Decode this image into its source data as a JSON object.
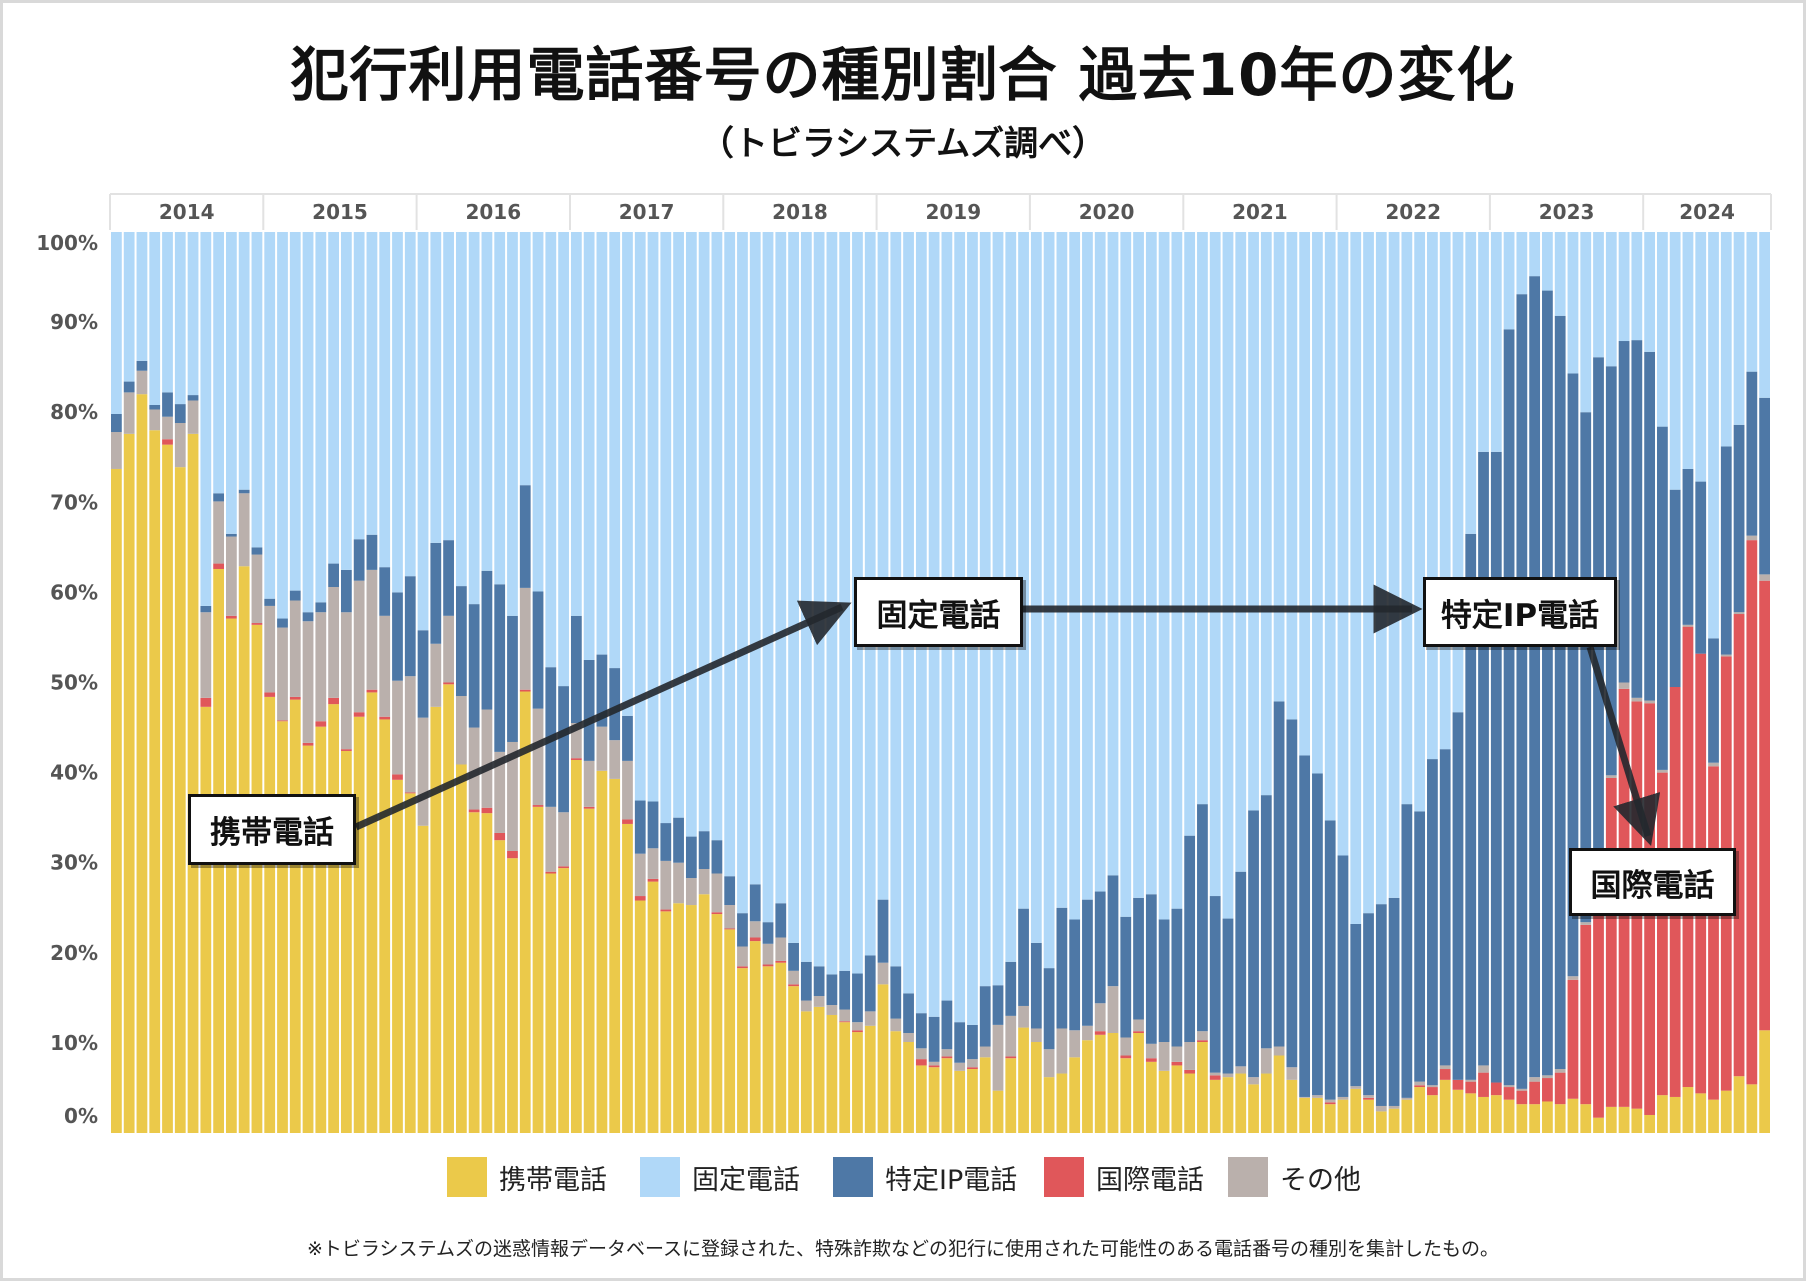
{
  "title": "犯行利用電話番号の種別割合  過去10年の変化",
  "subtitle": "（トビラシステムズ調べ）",
  "footnote": "※トビラシステムズの迷惑情報データベースに登録された、特殊詐欺などの犯行に使用された可能性のある電話番号の種別を集計したもの。",
  "annotations": {
    "mobile": "携帯電話",
    "fixed": "固定電話",
    "ip": "特定IP電話",
    "international": "国際電話"
  },
  "legend": [
    {
      "label": "携帯電話",
      "color": "#ebc94a"
    },
    {
      "label": "固定電話",
      "color": "#b0d8f8"
    },
    {
      "label": "特定IP電話",
      "color": "#4e78a6"
    },
    {
      "label": "国際電話",
      "color": "#e0575a"
    },
    {
      "label": "その他",
      "color": "#bab0ac"
    }
  ],
  "chart_data": {
    "type": "bar",
    "stacked": true,
    "normalized": true,
    "title": "犯行利用電話番号の種別割合  過去10年の変化",
    "xlabel": "",
    "ylabel": "",
    "ylim": [
      0,
      100
    ],
    "yticks": [
      "0%",
      "10%",
      "20%",
      "30%",
      "40%",
      "50%",
      "60%",
      "70%",
      "80%",
      "90%",
      "100%"
    ],
    "year_labels": [
      "2014",
      "2015",
      "2016",
      "2017",
      "2018",
      "2019",
      "2020",
      "2021",
      "2022",
      "2023",
      "2024"
    ],
    "legend_position": "bottom",
    "grid": false,
    "categories": [
      "2014-01",
      "2014-02",
      "2014-03",
      "2014-04",
      "2014-05",
      "2014-06",
      "2014-07",
      "2014-08",
      "2014-09",
      "2014-10",
      "2014-11",
      "2014-12",
      "2015-01",
      "2015-02",
      "2015-03",
      "2015-04",
      "2015-05",
      "2015-06",
      "2015-07",
      "2015-08",
      "2015-09",
      "2015-10",
      "2015-11",
      "2015-12",
      "2016-01",
      "2016-02",
      "2016-03",
      "2016-04",
      "2016-05",
      "2016-06",
      "2016-07",
      "2016-08",
      "2016-09",
      "2016-10",
      "2016-11",
      "2016-12",
      "2017-01",
      "2017-02",
      "2017-03",
      "2017-04",
      "2017-05",
      "2017-06",
      "2017-07",
      "2017-08",
      "2017-09",
      "2017-10",
      "2017-11",
      "2017-12",
      "2018-01",
      "2018-02",
      "2018-03",
      "2018-04",
      "2018-05",
      "2018-06",
      "2018-07",
      "2018-08",
      "2018-09",
      "2018-10",
      "2018-11",
      "2018-12",
      "2019-01",
      "2019-02",
      "2019-03",
      "2019-04",
      "2019-05",
      "2019-06",
      "2019-07",
      "2019-08",
      "2019-09",
      "2019-10",
      "2019-11",
      "2019-12",
      "2020-01",
      "2020-02",
      "2020-03",
      "2020-04",
      "2020-05",
      "2020-06",
      "2020-07",
      "2020-08",
      "2020-09",
      "2020-10",
      "2020-11",
      "2020-12",
      "2021-01",
      "2021-02",
      "2021-03",
      "2021-04",
      "2021-05",
      "2021-06",
      "2021-07",
      "2021-08",
      "2021-09",
      "2021-10",
      "2021-11",
      "2021-12",
      "2022-01",
      "2022-02",
      "2022-03",
      "2022-04",
      "2022-05",
      "2022-06",
      "2022-07",
      "2022-08",
      "2022-09",
      "2022-10",
      "2022-11",
      "2022-12",
      "2023-01",
      "2023-02",
      "2023-03",
      "2023-04",
      "2023-05",
      "2023-06",
      "2023-07",
      "2023-08",
      "2023-09",
      "2023-10",
      "2023-11",
      "2023-12",
      "2024-01",
      "2024-02",
      "2024-03",
      "2024-04",
      "2024-05",
      "2024-06",
      "2024-07",
      "2024-08",
      "2024-09",
      "2024-10"
    ],
    "series": [
      {
        "name": "携帯電話",
        "color": "#ebc94a",
        "values": [
          73.7,
          77.6,
          82.0,
          78.0,
          76.4,
          73.9,
          77.6,
          47.3,
          62.6,
          57.1,
          62.9,
          56.4,
          48.4,
          45.7,
          48.1,
          43.0,
          45.1,
          47.6,
          42.4,
          46.2,
          48.9,
          45.9,
          39.2,
          37.7,
          34.1,
          47.3,
          49.8,
          40.9,
          35.6,
          35.5,
          32.5,
          30.5,
          49.0,
          36.2,
          28.8,
          29.4,
          41.4,
          36.0,
          40.2,
          39.3,
          34.3,
          25.8,
          27.9,
          24.6,
          25.5,
          25.3,
          26.5,
          24.3,
          22.6,
          18.3,
          21.3,
          18.5,
          18.9,
          16.3,
          13.5,
          14.0,
          13.1,
          12.3,
          11.2,
          11.9,
          16.5,
          11.3,
          10.1,
          7.5,
          7.3,
          8.3,
          6.9,
          7.1,
          8.4,
          4.7,
          8.3,
          11.7,
          10.1,
          6.2,
          6.6,
          8.4,
          10.3,
          10.9,
          11.1,
          8.3,
          11.1,
          7.9,
          6.9,
          7.5,
          6.6,
          10.1,
          5.9,
          6.2,
          6.6,
          5.4,
          6.6,
          8.6,
          5.9,
          3.9,
          3.9,
          3.2,
          3.7,
          4.9,
          3.7,
          2.4,
          2.7,
          3.7,
          5.1,
          4.2,
          5.9,
          4.8,
          4.4,
          4.0,
          4.2,
          3.7,
          3.2,
          3.2,
          3.5,
          3.2,
          3.8,
          3.2,
          1.7,
          2.9,
          2.9,
          2.7,
          2.0,
          4.2,
          4.0,
          5.1,
          4.4,
          3.7,
          4.7,
          6.3,
          5.4,
          11.4
        ]
      },
      {
        "name": "国際電話",
        "color": "#e0575a",
        "values": [
          0,
          0,
          0,
          0,
          0.6,
          0,
          0,
          1.0,
          0.6,
          0.3,
          0,
          0.2,
          0.5,
          0.1,
          0.3,
          0.3,
          0.6,
          0.7,
          0.2,
          0.5,
          0.3,
          0.3,
          0.6,
          0.1,
          0,
          0,
          0.2,
          0,
          0.3,
          0.6,
          0.8,
          0.8,
          0.2,
          0.2,
          0.2,
          0.2,
          0.2,
          0.2,
          0,
          0,
          0.5,
          0.5,
          0.3,
          0.2,
          0,
          0,
          0,
          0.2,
          0.1,
          0.2,
          0.4,
          0.2,
          0.2,
          0.2,
          0,
          0,
          0,
          0.1,
          0.2,
          0,
          0,
          0,
          0,
          0.7,
          0.2,
          0.2,
          0,
          0.2,
          0,
          0,
          0.2,
          0,
          0,
          0,
          0,
          0,
          0,
          0.4,
          0,
          0.3,
          0.2,
          0.4,
          0,
          0.4,
          0.4,
          0.2,
          0.5,
          0,
          0,
          0,
          0,
          0,
          0,
          0,
          0,
          0.2,
          0,
          0,
          0.2,
          0,
          0,
          0,
          0.2,
          0.9,
          1.2,
          1.1,
          1.3,
          2.7,
          1.4,
          1.4,
          1.5,
          2.5,
          2.6,
          3.5,
          13.2,
          19.9,
          26.3,
          36.5,
          46.4,
          45.2,
          45.7,
          35.8,
          45.5,
          51.1,
          48.8,
          37.0,
          48.2,
          51.3,
          60.4,
          49.9
        ]
      },
      {
        "name": "その他",
        "color": "#bab0ac",
        "values": [
          4.1,
          4.6,
          2.6,
          2.3,
          2.5,
          4.9,
          3.7,
          9.5,
          6.9,
          8.8,
          8.1,
          7.6,
          9.6,
          10.3,
          10.7,
          13.5,
          12.1,
          12.3,
          15.2,
          14.6,
          13.3,
          11.2,
          10.4,
          12.9,
          12.0,
          7.0,
          7.4,
          7.6,
          9.1,
          10.9,
          9.0,
          12.1,
          11.3,
          10.7,
          7.2,
          6.0,
          3.9,
          5.1,
          4.9,
          4.3,
          6.5,
          4.7,
          3.4,
          5.4,
          4.5,
          3.0,
          2.8,
          4.3,
          2.6,
          2.2,
          1.8,
          2.3,
          2.6,
          1.5,
          1.2,
          1.2,
          1.1,
          1.3,
          0.9,
          1.6,
          2.4,
          1.4,
          1.0,
          1.2,
          0.4,
          0.8,
          0.9,
          0.9,
          1.2,
          7.3,
          4.5,
          2.4,
          1.5,
          3.1,
          5.0,
          3.0,
          1.6,
          3.1,
          5.2,
          2.0,
          1.3,
          1.6,
          3.2,
          1.7,
          3.1,
          1.0,
          0.3,
          0.4,
          0.8,
          0.8,
          2.8,
          1.0,
          1.4,
          0.1,
          0.3,
          0.3,
          0.3,
          0.3,
          0.3,
          0.6,
          0.3,
          0.2,
          0.4,
          0.2,
          0.4,
          0,
          0.2,
          0.8,
          0,
          0.2,
          0.2,
          0.5,
          0.3,
          0.4,
          0.4,
          0.3,
          0.3,
          0.3,
          0.7,
          0.4,
          0.3,
          0.3,
          0,
          0.2,
          0,
          0.4,
          0.2,
          0.2,
          0.5,
          0.7
        ]
      },
      {
        "name": "特定IP電話",
        "color": "#4e78a6",
        "values": [
          2.0,
          1.2,
          1.1,
          0.5,
          2.7,
          2.1,
          0.6,
          0.7,
          0.9,
          0.3,
          0.4,
          0.8,
          0.8,
          1.0,
          1.1,
          1.0,
          1.1,
          2.6,
          4.7,
          4.6,
          3.9,
          5.4,
          9.8,
          11.1,
          9.7,
          11.2,
          8.4,
          12.2,
          13.7,
          15.4,
          18.6,
          14.0,
          11.4,
          13.0,
          15.5,
          14.0,
          11.9,
          11.2,
          8.0,
          8.0,
          5.0,
          5.9,
          5.2,
          4.2,
          5.0,
          4.6,
          4.2,
          3.7,
          3.2,
          3.7,
          4.1,
          2.4,
          3.8,
          3.1,
          4.3,
          3.3,
          3.4,
          4.3,
          5.4,
          6.2,
          7.0,
          5.8,
          4.4,
          3.9,
          5.0,
          5.4,
          4.5,
          3.8,
          6.7,
          4.4,
          6.0,
          10.8,
          9.5,
          9.0,
          13.4,
          12.3,
          14.0,
          12.4,
          12.3,
          13.4,
          13.5,
          16.6,
          13.6,
          15.3,
          22.9,
          25.2,
          19.6,
          17.2,
          21.6,
          29.6,
          28.1,
          38.3,
          38.6,
          37.9,
          35.7,
          31.0,
          26.8,
          18.0,
          20.2,
          22.4,
          23.1,
          32.6,
          30.0,
          36.2,
          35.1,
          40.8,
          60.6,
          68.1,
          70.0,
          83.9,
          88.2,
          88.9,
          87.1,
          83.6,
          66.9,
          56.6,
          57.8,
          45.4,
          37.9,
          39.7,
          38.7,
          38.1,
          21.9,
          17.3,
          19.1,
          13.8,
          23.1,
          20.8,
          18.2,
          19.6
        ]
      },
      {
        "name": "固定電話",
        "color": "#b0d8f8",
        "values": [
          20.2,
          16.6,
          14.3,
          19.2,
          17.8,
          19.1,
          18.1,
          41.5,
          29.0,
          33.5,
          28.6,
          35.0,
          40.7,
          42.9,
          39.8,
          42.2,
          41.1,
          36.8,
          37.5,
          34.1,
          33.6,
          37.2,
          40.0,
          38.2,
          44.2,
          34.5,
          34.2,
          39.3,
          41.3,
          37.6,
          39.1,
          42.6,
          28.1,
          39.9,
          48.3,
          50.4,
          42.6,
          47.5,
          46.9,
          48.4,
          53.7,
          63.1,
          63.2,
          65.6,
          65.0,
          67.1,
          66.5,
          67.5,
          71.5,
          75.6,
          72.4,
          76.6,
          74.5,
          78.9,
          81.0,
          81.5,
          82.4,
          82.0,
          82.3,
          80.3,
          74.1,
          81.5,
          84.5,
          86.7,
          87.1,
          85.3,
          87.7,
          88.0,
          83.7,
          83.6,
          81.0,
          75.1,
          78.9,
          81.7,
          75.0,
          76.3,
          74.1,
          73.2,
          71.4,
          76.0,
          73.9,
          73.5,
          76.3,
          75.1,
          67.0,
          63.5,
          73.7,
          76.2,
          71.0,
          64.2,
          62.5,
          52.1,
          54.1,
          58.1,
          60.1,
          65.3,
          69.2,
          76.8,
          75.6,
          74.6,
          73.9,
          63.5,
          64.3,
          58.5,
          57.4,
          53.3,
          33.5,
          24.4,
          24.4,
          10.8,
          6.9,
          4.9,
          6.5,
          9.3,
          15.7,
          20.0,
          13.9,
          14.9,
          12.1,
          12.0,
          13.3,
          21.6,
          28.6,
          26.3,
          27.7,
          45.1,
          23.8,
          21.4,
          15.5,
          18.4
        ]
      }
    ]
  }
}
